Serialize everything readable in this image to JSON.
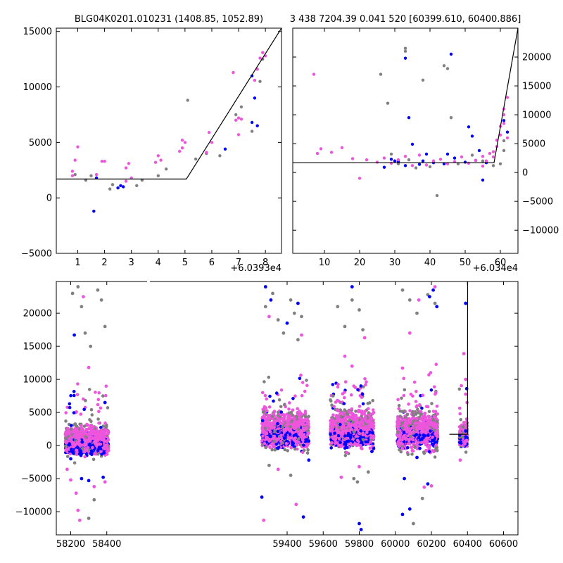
{
  "colors": {
    "gray": "#808080",
    "blue": "#0000ff",
    "pink": "#ee55dd",
    "model": "#000000",
    "frame": "#000000",
    "background": "#ffffff"
  },
  "chart_data": [
    {
      "id": "top-left",
      "type": "scatter",
      "title": "BLG04K0201.010231 (1408.85, 1052.89)",
      "xlim": [
        0.2,
        8.6
      ],
      "ylim": [
        -5000,
        15300
      ],
      "x_offset_label": "+6.0393e4",
      "xticks": [
        1,
        2,
        3,
        4,
        5,
        6,
        7,
        8
      ],
      "yticks": [
        -5000,
        0,
        5000,
        10000,
        15000
      ],
      "y_axis_side": "left",
      "model_line": [
        [
          0.2,
          1700
        ],
        [
          5.05,
          1700
        ],
        [
          8.6,
          15300
        ]
      ],
      "series": [
        {
          "color": "gray",
          "points": [
            [
              0.9,
              2100
            ],
            [
              1.3,
              1600
            ],
            [
              1.5,
              2000
            ],
            [
              2.2,
              800
            ],
            [
              2.3,
              1200
            ],
            [
              2.5,
              900
            ],
            [
              3.2,
              1100
            ],
            [
              3.4,
              1600
            ],
            [
              4.0,
              2000
            ],
            [
              4.3,
              2600
            ],
            [
              5.1,
              8800
            ],
            [
              5.4,
              3500
            ],
            [
              5.8,
              4000
            ],
            [
              6.3,
              3800
            ],
            [
              6.9,
              7500
            ],
            [
              7.1,
              8200
            ],
            [
              7.5,
              6000
            ],
            [
              7.8,
              10500
            ],
            [
              7.9,
              12500
            ]
          ]
        },
        {
          "color": "blue",
          "points": [
            [
              1.6,
              -1200
            ],
            [
              1.7,
              1800
            ],
            [
              2.5,
              900
            ],
            [
              2.6,
              1100
            ],
            [
              2.7,
              1000
            ],
            [
              6.5,
              4400
            ],
            [
              7.5,
              6800
            ],
            [
              7.6,
              9000
            ],
            [
              7.7,
              6500
            ],
            [
              7.5,
              11000
            ]
          ]
        },
        {
          "color": "pink",
          "points": [
            [
              0.8,
              2000
            ],
            [
              0.8,
              2400
            ],
            [
              0.9,
              3400
            ],
            [
              1.0,
              4600
            ],
            [
              1.7,
              2100
            ],
            [
              1.9,
              3300
            ],
            [
              2.0,
              3300
            ],
            [
              2.8,
              2700
            ],
            [
              2.9,
              3100
            ],
            [
              2.8,
              1500
            ],
            [
              3.0,
              1800
            ],
            [
              3.9,
              3200
            ],
            [
              4.0,
              3800
            ],
            [
              4.1,
              3400
            ],
            [
              4.8,
              4200
            ],
            [
              4.9,
              4500
            ],
            [
              4.9,
              5200
            ],
            [
              5.0,
              5000
            ],
            [
              5.8,
              4100
            ],
            [
              5.9,
              5900
            ],
            [
              6.0,
              5000
            ],
            [
              6.8,
              11300
            ],
            [
              6.9,
              7000
            ],
            [
              7.0,
              7200
            ],
            [
              7.1,
              7100
            ],
            [
              7.0,
              5700
            ],
            [
              7.6,
              10600
            ],
            [
              7.7,
              11600
            ],
            [
              7.8,
              12600
            ],
            [
              7.9,
              13100
            ],
            [
              8.0,
              12800
            ],
            [
              8.0,
              15400
            ]
          ]
        }
      ]
    },
    {
      "id": "top-right",
      "type": "scatter",
      "title": "3 438 7204.39 0.041 520 [60399.610, 60400.886]",
      "xlim": [
        1,
        65
      ],
      "ylim": [
        -14000,
        25000
      ],
      "x_offset_label": "+6.034e4",
      "xticks": [
        10,
        20,
        30,
        40,
        50,
        60
      ],
      "yticks": [
        -10000,
        -5000,
        0,
        5000,
        10000,
        15000,
        20000
      ],
      "y_axis_side": "right",
      "model_line": [
        [
          1,
          1700
        ],
        [
          58.2,
          1700
        ],
        [
          65,
          25000
        ]
      ],
      "series": [
        {
          "color": "gray",
          "points": [
            [
              26,
              17000
            ],
            [
              29,
              3200
            ],
            [
              33,
              21500
            ],
            [
              33,
              21000
            ],
            [
              38,
              16000
            ],
            [
              44,
              18500
            ],
            [
              45,
              18000
            ],
            [
              42,
              -4000
            ],
            [
              46,
              9500
            ],
            [
              28,
              12000
            ],
            [
              31,
              1500
            ],
            [
              34,
              2200
            ],
            [
              36,
              800
            ],
            [
              40,
              1000
            ],
            [
              48,
              1500
            ],
            [
              52,
              3000
            ],
            [
              55,
              2000
            ],
            [
              58,
              1200
            ],
            [
              60,
              1500
            ],
            [
              61,
              3800
            ],
            [
              61,
              5500
            ]
          ]
        },
        {
          "color": "blue",
          "points": [
            [
              33,
              19800
            ],
            [
              46,
              20500
            ],
            [
              34,
              9500
            ],
            [
              35,
              4900
            ],
            [
              39,
              3200
            ],
            [
              45,
              3200
            ],
            [
              51,
              7900
            ],
            [
              52,
              6300
            ],
            [
              55,
              -1300
            ],
            [
              54,
              3800
            ],
            [
              29,
              2300
            ],
            [
              30,
              2000
            ],
            [
              31,
              1900
            ],
            [
              37,
              1400
            ],
            [
              38,
              2000
            ],
            [
              44,
              1500
            ],
            [
              47,
              2500
            ],
            [
              50,
              1800
            ],
            [
              53,
              2100
            ],
            [
              56,
              1700
            ],
            [
              27,
              900
            ],
            [
              33,
              1200
            ],
            [
              41,
              1700
            ],
            [
              61,
              9000
            ],
            [
              62,
              7000
            ]
          ]
        },
        {
          "color": "pink",
          "points": [
            [
              7,
              17000
            ],
            [
              8,
              3300
            ],
            [
              9,
              4100
            ],
            [
              12,
              3500
            ],
            [
              15,
              4300
            ],
            [
              18,
              2400
            ],
            [
              20,
              -1000
            ],
            [
              22,
              2200
            ],
            [
              25,
              1800
            ],
            [
              27,
              2500
            ],
            [
              29,
              1600
            ],
            [
              31,
              2200
            ],
            [
              33,
              2800
            ],
            [
              35,
              1200
            ],
            [
              37,
              3000
            ],
            [
              39,
              1300
            ],
            [
              41,
              2000
            ],
            [
              43,
              2300
            ],
            [
              45,
              1500
            ],
            [
              47,
              1900
            ],
            [
              49,
              2700
            ],
            [
              51,
              1600
            ],
            [
              53,
              2100
            ],
            [
              55,
              2800
            ],
            [
              57,
              3300
            ],
            [
              58,
              3600
            ],
            [
              59,
              4500
            ],
            [
              60,
              6500
            ],
            [
              60,
              8000
            ],
            [
              61,
              10000
            ],
            [
              61,
              11000
            ],
            [
              62,
              13000
            ],
            [
              61,
              8500
            ],
            [
              62,
              6000
            ],
            [
              55,
              1100
            ],
            [
              56,
              2000
            ],
            [
              58,
              2700
            ],
            [
              59,
              5600
            ]
          ]
        }
      ]
    },
    {
      "id": "bottom",
      "type": "scatter",
      "title": "",
      "xlim": [
        58120,
        60680
      ],
      "ylim": [
        -13500,
        24800
      ],
      "xticks": [
        58200,
        58400,
        59400,
        59600,
        59800,
        60000,
        60200,
        60400,
        60600
      ],
      "yticks": [
        -10000,
        -5000,
        0,
        5000,
        10000,
        15000,
        20000
      ],
      "y_axis_side": "left",
      "model_line": [
        [
          60300,
          1700
        ],
        [
          60400,
          1700
        ],
        [
          60401,
          25000
        ]
      ],
      "season_blocks": [
        {
          "x": [
            58170,
            58410
          ],
          "center": 800,
          "spread": 1100
        },
        {
          "x": [
            59260,
            59520
          ],
          "center": 2400,
          "spread": 1400
        },
        {
          "x": [
            59640,
            59880
          ],
          "center": 2500,
          "spread": 1400
        },
        {
          "x": [
            60010,
            60235
          ],
          "center": 2200,
          "spread": 1400
        },
        {
          "x": [
            60355,
            60400
          ],
          "center": 1700,
          "spread": 900
        }
      ],
      "series": [
        {
          "color": "gray",
          "points": [
            [
              58210,
              23000
            ],
            [
              58240,
              24000
            ],
            [
              58260,
              21000
            ],
            [
              58280,
              17000
            ],
            [
              58310,
              15000
            ],
            [
              58350,
              23500
            ],
            [
              58370,
              22000
            ],
            [
              58390,
              18000
            ],
            [
              58300,
              -11000
            ],
            [
              58330,
              -8200
            ],
            [
              59280,
              21000
            ],
            [
              59320,
              23000
            ],
            [
              59350,
              19000
            ],
            [
              59380,
              17000
            ],
            [
              59420,
              22000
            ],
            [
              59440,
              20000
            ],
            [
              59460,
              16000
            ],
            [
              59480,
              19500
            ],
            [
              59300,
              -3000
            ],
            [
              59420,
              -4500
            ],
            [
              59680,
              21000
            ],
            [
              59720,
              18000
            ],
            [
              59760,
              22000
            ],
            [
              59800,
              20500
            ],
            [
              59820,
              17500
            ],
            [
              59770,
              -5000
            ],
            [
              59790,
              -5500
            ],
            [
              59850,
              -4000
            ],
            [
              60040,
              23500
            ],
            [
              60080,
              22000
            ],
            [
              60120,
              20000
            ],
            [
              60180,
              22800
            ],
            [
              60220,
              21500
            ],
            [
              60100,
              -11800
            ],
            [
              60150,
              -8000
            ]
          ]
        },
        {
          "color": "blue",
          "points": [
            [
              58220,
              16700
            ],
            [
              58200,
              -2000
            ],
            [
              58260,
              -5000
            ],
            [
              58300,
              -5300
            ],
            [
              58380,
              -4800
            ],
            [
              58390,
              6500
            ],
            [
              59280,
              24000
            ],
            [
              59310,
              22000
            ],
            [
              59400,
              18500
            ],
            [
              59460,
              21500
            ],
            [
              59520,
              -2200
            ],
            [
              59490,
              -10800
            ],
            [
              59260,
              -7800
            ],
            [
              59760,
              24000
            ],
            [
              59810,
              -12700
            ],
            [
              59800,
              -11800
            ],
            [
              59870,
              -900
            ],
            [
              60050,
              -5000
            ],
            [
              60080,
              -9600
            ],
            [
              60040,
              -10400
            ],
            [
              60120,
              -1800
            ],
            [
              60190,
              22500
            ],
            [
              60210,
              23500
            ],
            [
              60230,
              21000
            ],
            [
              60180,
              -5800
            ],
            [
              60390,
              21500
            ],
            [
              60390,
              2200
            ],
            [
              60396,
              8600
            ]
          ]
        },
        {
          "color": "pink",
          "points": [
            [
              58180,
              -3600
            ],
            [
              58200,
              -5200
            ],
            [
              58230,
              -7200
            ],
            [
              58240,
              -9800
            ],
            [
              58250,
              -11300
            ],
            [
              58270,
              22500
            ],
            [
              58300,
              11800
            ],
            [
              58330,
              -6200
            ],
            [
              58390,
              -5500
            ],
            [
              59270,
              -11300
            ],
            [
              59300,
              19500
            ],
            [
              59350,
              -3600
            ],
            [
              59450,
              -8900
            ],
            [
              59480,
              16700
            ],
            [
              59700,
              -4800
            ],
            [
              59720,
              13500
            ],
            [
              59760,
              12000
            ],
            [
              59800,
              -3200
            ],
            [
              59830,
              16300
            ],
            [
              60040,
              11700
            ],
            [
              60080,
              17000
            ],
            [
              60130,
              22000
            ],
            [
              60160,
              -6300
            ],
            [
              60200,
              -6100
            ],
            [
              60220,
              24000
            ],
            [
              60360,
              -2200
            ],
            [
              60380,
              13900
            ],
            [
              60390,
              10000
            ],
            [
              60396,
              4000
            ],
            [
              60398,
              6500
            ]
          ]
        }
      ]
    }
  ]
}
